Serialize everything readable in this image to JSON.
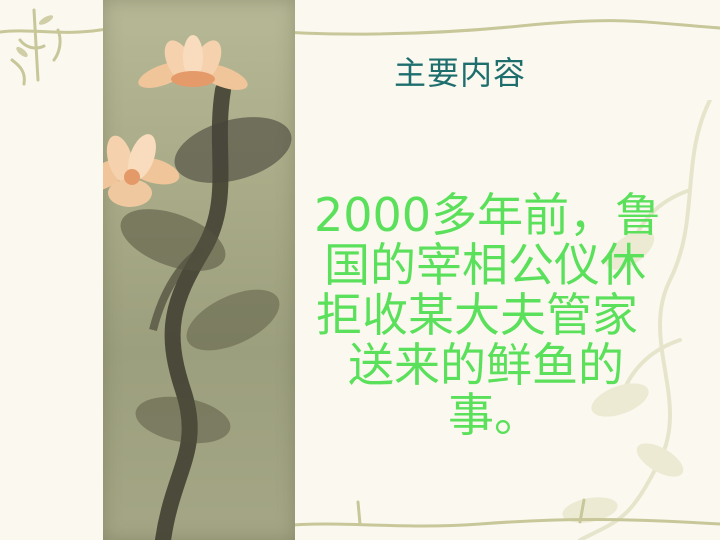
{
  "slide": {
    "title": "主要内容",
    "body_lines": [
      "2000多年前，鲁",
      "国的宰相公仪休",
      "拒收某大夫管家",
      "送来的鲜鱼的",
      "事。"
    ]
  },
  "colors": {
    "title": "#1e6e6e",
    "body_text": "#5be05b",
    "background": "#fbf9ef",
    "painting": "#a9ab88",
    "lotus_petal": "#f1c59a",
    "vine": "#c8c79a"
  },
  "decorations": {
    "painting": "lotus-ink-painting",
    "border": "vine-border"
  }
}
